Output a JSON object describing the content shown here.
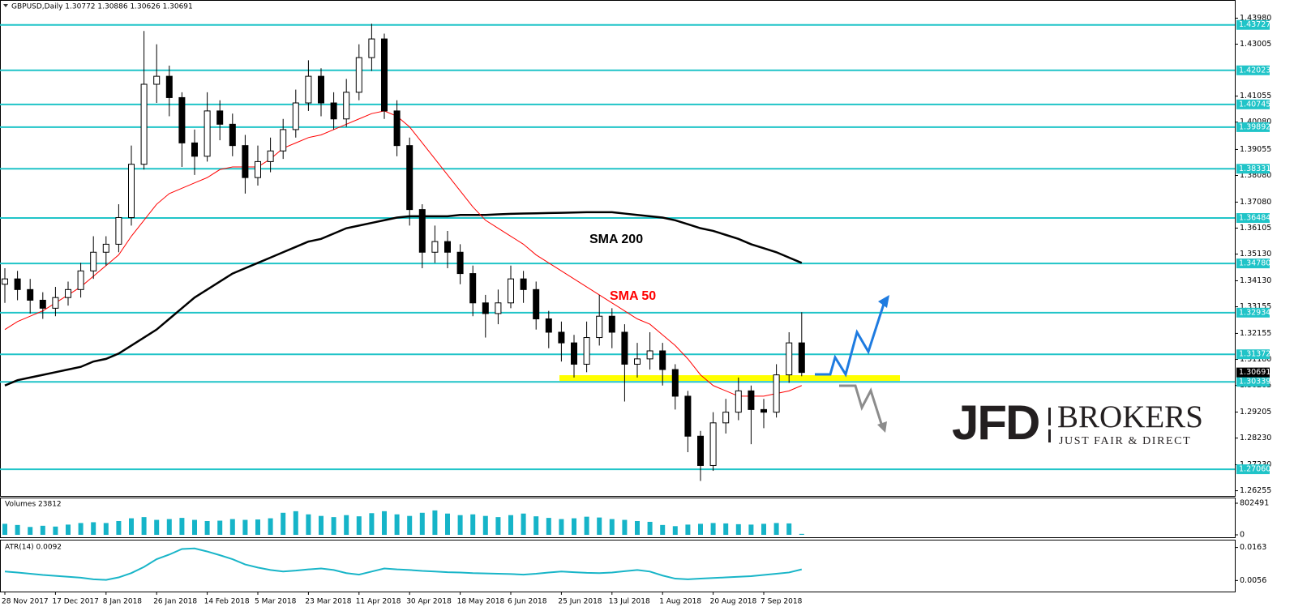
{
  "chart_data": [
    {
      "type": "candlestick",
      "title": "GBPUSD,Daily  1.30772 1.30886 1.30626 1.30691",
      "categories": [
        "28 Nov 2017",
        null,
        null,
        null,
        "17 Dec 2017",
        null,
        null,
        null,
        "8 Jan 2018",
        null,
        null,
        null,
        "26 Jan 2018",
        null,
        null,
        null,
        "14 Feb 2018",
        null,
        null,
        null,
        "5 Mar 2018",
        null,
        null,
        null,
        "23 Mar 2018",
        null,
        null,
        null,
        "11 Apr 2018",
        null,
        null,
        null,
        "30 Apr 2018",
        null,
        null,
        null,
        "18 May 2018",
        null,
        null,
        null,
        "6 Jun 2018",
        null,
        null,
        null,
        "25 Jun 2018",
        null,
        null,
        null,
        "13 Jul 2018",
        null,
        null,
        null,
        "1 Aug 2018",
        null,
        null,
        null,
        "20 Aug 2018",
        null,
        null,
        null,
        "7 Sep 2018",
        null,
        null,
        null
      ],
      "open": [
        1.34,
        1.342,
        1.338,
        1.334,
        1.331,
        1.335,
        1.338,
        1.345,
        1.352,
        1.355,
        1.365,
        1.385,
        1.415,
        1.418,
        1.41,
        1.393,
        1.388,
        1.405,
        1.4,
        1.392,
        1.38,
        1.386,
        1.39,
        1.398,
        1.408,
        1.418,
        1.408,
        1.402,
        1.412,
        1.425,
        1.432,
        1.405,
        1.392,
        1.368,
        1.352,
        1.356,
        1.352,
        1.344,
        1.333,
        1.329,
        1.333,
        1.342,
        1.338,
        1.327,
        1.322,
        1.318,
        1.31,
        1.32,
        1.328,
        1.322,
        1.31,
        1.312,
        1.315,
        1.308,
        1.298,
        1.283,
        1.272,
        1.288,
        1.292,
        1.3,
        1.293,
        1.292,
        1.306,
        1.318
      ],
      "high": [
        1.346,
        1.345,
        1.342,
        1.337,
        1.339,
        1.341,
        1.348,
        1.358,
        1.358,
        1.37,
        1.392,
        1.435,
        1.43,
        1.422,
        1.412,
        1.398,
        1.412,
        1.409,
        1.404,
        1.396,
        1.392,
        1.395,
        1.402,
        1.413,
        1.424,
        1.421,
        1.412,
        1.417,
        1.43,
        1.4377,
        1.434,
        1.409,
        1.395,
        1.37,
        1.362,
        1.36,
        1.355,
        1.347,
        1.336,
        1.338,
        1.347,
        1.345,
        1.341,
        1.33,
        1.326,
        1.321,
        1.326,
        1.336,
        1.331,
        1.325,
        1.318,
        1.322,
        1.318,
        1.31,
        1.3,
        1.285,
        1.292,
        1.297,
        1.305,
        1.302,
        1.297,
        1.31,
        1.322,
        1.3295
      ],
      "low": [
        1.333,
        1.334,
        1.329,
        1.327,
        1.328,
        1.332,
        1.335,
        1.342,
        1.347,
        1.352,
        1.362,
        1.383,
        1.408,
        1.403,
        1.384,
        1.381,
        1.386,
        1.394,
        1.388,
        1.374,
        1.377,
        1.382,
        1.387,
        1.395,
        1.405,
        1.403,
        1.398,
        1.399,
        1.409,
        1.42,
        1.402,
        1.388,
        1.362,
        1.346,
        1.348,
        1.346,
        1.34,
        1.328,
        1.32,
        1.325,
        1.331,
        1.333,
        1.323,
        1.316,
        1.311,
        1.305,
        1.307,
        1.317,
        1.316,
        1.296,
        1.305,
        1.308,
        1.302,
        1.293,
        1.277,
        1.2662,
        1.27,
        1.284,
        1.289,
        1.28,
        1.286,
        1.29,
        1.303,
        1.3055
      ],
      "close": [
        1.342,
        1.338,
        1.334,
        1.331,
        1.335,
        1.338,
        1.345,
        1.352,
        1.355,
        1.365,
        1.385,
        1.415,
        1.418,
        1.41,
        1.393,
        1.388,
        1.405,
        1.4,
        1.392,
        1.38,
        1.386,
        1.39,
        1.398,
        1.408,
        1.418,
        1.408,
        1.402,
        1.412,
        1.425,
        1.432,
        1.405,
        1.392,
        1.368,
        1.352,
        1.356,
        1.352,
        1.344,
        1.333,
        1.329,
        1.333,
        1.342,
        1.338,
        1.327,
        1.322,
        1.318,
        1.31,
        1.32,
        1.328,
        1.322,
        1.31,
        1.312,
        1.315,
        1.308,
        1.298,
        1.283,
        1.272,
        1.288,
        1.292,
        1.3,
        1.293,
        1.292,
        1.306,
        1.318,
        1.3069
      ],
      "up_color": "#ffffff",
      "down_color": "#000000",
      "series": [
        {
          "name": "SMA 200",
          "color": "#000000",
          "values": [
            1.302,
            1.304,
            1.305,
            1.306,
            1.307,
            1.308,
            1.309,
            1.311,
            1.312,
            1.314,
            1.317,
            1.32,
            1.323,
            1.327,
            1.331,
            1.335,
            1.338,
            1.341,
            1.344,
            1.346,
            1.348,
            1.35,
            1.352,
            1.354,
            1.356,
            1.357,
            1.359,
            1.361,
            1.362,
            1.363,
            1.364,
            1.365,
            1.3655,
            1.3655,
            1.3655,
            1.3655,
            1.366,
            1.366,
            1.366,
            1.3662,
            1.3664,
            1.3665,
            1.3666,
            1.3667,
            1.3668,
            1.3669,
            1.367,
            1.367,
            1.367,
            1.3665,
            1.366,
            1.3655,
            1.365,
            1.364,
            1.3625,
            1.361,
            1.36,
            1.3585,
            1.357,
            1.355,
            1.3535,
            1.352,
            1.35,
            1.348
          ]
        },
        {
          "name": "SMA 50",
          "color": "#ff0000",
          "values": [
            1.323,
            1.326,
            1.328,
            1.33,
            1.333,
            1.336,
            1.339,
            1.343,
            1.347,
            1.351,
            1.358,
            1.364,
            1.37,
            1.374,
            1.376,
            1.378,
            1.38,
            1.383,
            1.384,
            1.384,
            1.384,
            1.387,
            1.391,
            1.393,
            1.395,
            1.396,
            1.398,
            1.4,
            1.402,
            1.404,
            1.405,
            1.403,
            1.399,
            1.393,
            1.387,
            1.381,
            1.375,
            1.369,
            1.364,
            1.361,
            1.358,
            1.355,
            1.351,
            1.348,
            1.345,
            1.342,
            1.339,
            1.336,
            1.333,
            1.33,
            1.327,
            1.325,
            1.321,
            1.317,
            1.312,
            1.306,
            1.302,
            1.3,
            1.298,
            1.298,
            1.298,
            1.299,
            1.3,
            1.302
          ]
        }
      ],
      "levels": [
        1.43727,
        1.42023,
        1.40745,
        1.39892,
        1.38331,
        1.36484,
        {
          "value": 1.3478,
          "label": "1.34780"
        },
        1.32934,
        1.31372,
        1.30339,
        {
          "value": 1.2706,
          "label": "1.27060"
        }
      ],
      "level_color": "#20c4c8",
      "last": 1.30691,
      "ylim": [
        1.2612,
        1.446
      ],
      "yticks": [
        {
          "value": 1.4398,
          "label": "1.43980"
        },
        1.43005,
        1.41055,
        {
          "value": 1.4008,
          "label": "1.40080"
        },
        1.39055,
        {
          "value": 1.3808,
          "label": "1.38080"
        },
        {
          "value": 1.3708,
          "label": "1.37080"
        },
        1.36105,
        {
          "value": 1.3513,
          "label": "1.35130"
        },
        {
          "value": 1.3413,
          "label": "1.34130"
        },
        1.33155,
        1.32155,
        {
          "value": 1.3118,
          "label": "1.31180"
        },
        1.30205,
        1.29205,
        {
          "value": 1.2823,
          "label": "1.28230"
        },
        {
          "value": 1.2723,
          "label": "1.27230"
        },
        1.26255
      ]
    },
    {
      "type": "bar",
      "title": "Volumes 23812",
      "values": [
        280000,
        250000,
        200000,
        230000,
        210000,
        260000,
        300000,
        320000,
        300000,
        350000,
        420000,
        450000,
        380000,
        400000,
        430000,
        380000,
        350000,
        360000,
        400000,
        380000,
        390000,
        420000,
        560000,
        600000,
        520000,
        480000,
        450000,
        500000,
        470000,
        550000,
        600000,
        520000,
        480000,
        560000,
        620000,
        540000,
        500000,
        520000,
        480000,
        450000,
        500000,
        540000,
        470000,
        430000,
        400000,
        420000,
        460000,
        440000,
        400000,
        380000,
        350000,
        330000,
        250000,
        220000,
        260000,
        280000,
        300000,
        290000,
        270000,
        260000,
        280000,
        300000,
        290000,
        23812
      ],
      "color": "#16b4c8",
      "ylim": [
        0,
        802491
      ],
      "yticks": [
        802491,
        0
      ]
    },
    {
      "type": "line",
      "title": "ATR(14) 0.0092",
      "values": [
        0.0085,
        0.0082,
        0.0078,
        0.0074,
        0.0071,
        0.0068,
        0.0065,
        0.006,
        0.0058,
        0.0066,
        0.008,
        0.01,
        0.0125,
        0.014,
        0.0158,
        0.016,
        0.015,
        0.0138,
        0.0125,
        0.0108,
        0.0098,
        0.009,
        0.0085,
        0.0088,
        0.0092,
        0.0095,
        0.009,
        0.008,
        0.0075,
        0.0085,
        0.0095,
        0.0092,
        0.009,
        0.0087,
        0.0085,
        0.0083,
        0.0082,
        0.008,
        0.0079,
        0.0078,
        0.0077,
        0.0075,
        0.0078,
        0.0082,
        0.0085,
        0.0083,
        0.0081,
        0.008,
        0.0082,
        0.0086,
        0.009,
        0.0085,
        0.0072,
        0.0062,
        0.006,
        0.0062,
        0.0064,
        0.0066,
        0.0068,
        0.007,
        0.0074,
        0.0078,
        0.0082,
        0.0092
      ],
      "color": "#19b5c8",
      "ylim": [
        0.0028,
        0.0183
      ],
      "yticks": [
        0.0163,
        0.0056
      ]
    }
  ],
  "logo": {
    "name": "JFD",
    "word": "BROKERS",
    "tagline": "JUST FAIR & DIRECT"
  }
}
